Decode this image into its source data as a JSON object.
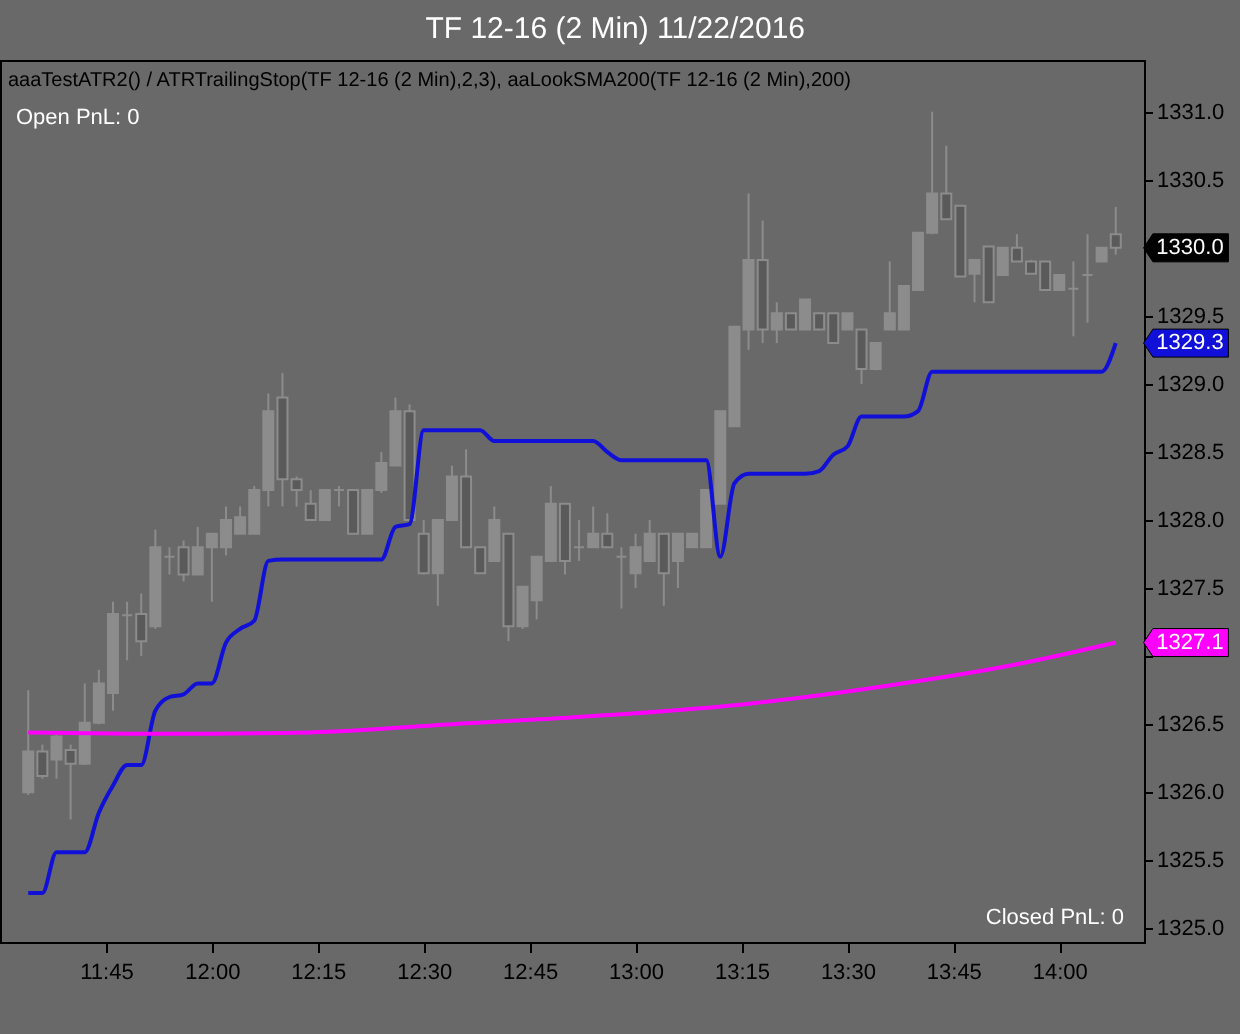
{
  "chart_data": {
    "type": "candlestick",
    "title": "TF 12-16 (2 Min)  11/22/2016",
    "annotations": [
      "aaaTestATR2() / ATRTrailingStop(TF 12-16 (2 Min),2,3), aaLookSMA200(TF 12-16 (2 Min),200)",
      "Open PnL: 0",
      "Closed PnL: 0"
    ],
    "color": "#8c8c8c",
    "x": [
      "2016-11-22T11:34",
      "2016-11-22T11:36",
      "2016-11-22T11:38",
      "2016-11-22T11:40",
      "2016-11-22T11:42",
      "2016-11-22T11:44",
      "2016-11-22T11:46",
      "2016-11-22T11:48",
      "2016-11-22T11:50",
      "2016-11-22T11:52",
      "2016-11-22T11:54",
      "2016-11-22T11:56",
      "2016-11-22T11:58",
      "2016-11-22T12:00",
      "2016-11-22T12:02",
      "2016-11-22T12:04",
      "2016-11-22T12:06",
      "2016-11-22T12:08",
      "2016-11-22T12:10",
      "2016-11-22T12:12",
      "2016-11-22T12:14",
      "2016-11-22T12:16",
      "2016-11-22T12:18",
      "2016-11-22T12:20",
      "2016-11-22T12:22",
      "2016-11-22T12:24",
      "2016-11-22T12:26",
      "2016-11-22T12:28",
      "2016-11-22T12:30",
      "2016-11-22T12:32",
      "2016-11-22T12:34",
      "2016-11-22T12:36",
      "2016-11-22T12:38",
      "2016-11-22T12:40",
      "2016-11-22T12:42",
      "2016-11-22T12:44",
      "2016-11-22T12:46",
      "2016-11-22T12:48",
      "2016-11-22T12:50",
      "2016-11-22T12:52",
      "2016-11-22T12:54",
      "2016-11-22T12:56",
      "2016-11-22T12:58",
      "2016-11-22T13:00",
      "2016-11-22T13:02",
      "2016-11-22T13:04",
      "2016-11-22T13:06",
      "2016-11-22T13:08",
      "2016-11-22T13:10",
      "2016-11-22T13:12",
      "2016-11-22T13:14",
      "2016-11-22T13:16",
      "2016-11-22T13:18",
      "2016-11-22T13:20",
      "2016-11-22T13:22",
      "2016-11-22T13:24",
      "2016-11-22T13:26",
      "2016-11-22T13:28",
      "2016-11-22T13:30",
      "2016-11-22T13:32",
      "2016-11-22T13:34",
      "2016-11-22T13:36",
      "2016-11-22T13:38",
      "2016-11-22T13:40",
      "2016-11-22T13:42",
      "2016-11-22T13:44",
      "2016-11-22T13:46",
      "2016-11-22T13:48",
      "2016-11-22T13:50",
      "2016-11-22T13:52",
      "2016-11-22T13:54",
      "2016-11-22T13:56",
      "2016-11-22T13:58",
      "2016-11-22T14:00",
      "2016-11-22T14:02",
      "2016-11-22T14:04",
      "2016-11-22T14:06",
      "2016-11-22T14:08"
    ],
    "ohlc": [
      [
        1326.0,
        1326.75,
        1325.98,
        1326.3
      ],
      [
        1326.3,
        1326.35,
        1326.1,
        1326.12
      ],
      [
        1326.24,
        1326.45,
        1326.1,
        1326.41
      ],
      [
        1326.31,
        1326.35,
        1325.8,
        1326.21
      ],
      [
        1326.21,
        1326.8,
        1326.2,
        1326.51
      ],
      [
        1326.51,
        1326.9,
        1326.5,
        1326.8
      ],
      [
        1326.73,
        1327.4,
        1326.6,
        1327.31
      ],
      [
        1327.3,
        1327.4,
        1326.97,
        1327.3
      ],
      [
        1327.31,
        1327.46,
        1327.0,
        1327.11
      ],
      [
        1327.22,
        1327.93,
        1327.2,
        1327.8
      ],
      [
        1327.73,
        1327.8,
        1327.6,
        1327.73
      ],
      [
        1327.8,
        1327.85,
        1327.55,
        1327.6
      ],
      [
        1327.6,
        1327.95,
        1327.6,
        1327.8
      ],
      [
        1327.8,
        1327.9,
        1327.4,
        1327.9
      ],
      [
        1327.8,
        1328.1,
        1327.74,
        1328.0
      ],
      [
        1327.9,
        1328.1,
        1327.9,
        1328.02
      ],
      [
        1327.9,
        1328.25,
        1327.9,
        1328.22
      ],
      [
        1328.22,
        1328.93,
        1328.1,
        1328.8
      ],
      [
        1328.9,
        1329.08,
        1328.1,
        1328.3
      ],
      [
        1328.3,
        1328.32,
        1328.1,
        1328.22
      ],
      [
        1328.12,
        1328.22,
        1328.0,
        1328.0
      ],
      [
        1328.0,
        1328.22,
        1328.0,
        1328.22
      ],
      [
        1328.22,
        1328.25,
        1328.1,
        1328.22
      ],
      [
        1328.22,
        1328.22,
        1327.9,
        1327.9
      ],
      [
        1327.9,
        1328.22,
        1327.9,
        1328.22
      ],
      [
        1328.22,
        1328.5,
        1328.2,
        1328.42
      ],
      [
        1328.4,
        1328.9,
        1328.4,
        1328.8
      ],
      [
        1328.8,
        1328.85,
        1328.0,
        1328.0
      ],
      [
        1327.9,
        1328.0,
        1327.6,
        1327.61
      ],
      [
        1327.61,
        1328.0,
        1327.37,
        1328.0
      ],
      [
        1328.0,
        1328.4,
        1328.0,
        1328.32
      ],
      [
        1328.32,
        1328.52,
        1327.8,
        1327.8
      ],
      [
        1327.8,
        1327.8,
        1327.61,
        1327.61
      ],
      [
        1327.7,
        1328.1,
        1327.7,
        1328.0
      ],
      [
        1327.9,
        1327.9,
        1327.11,
        1327.22
      ],
      [
        1327.22,
        1327.51,
        1327.2,
        1327.51
      ],
      [
        1327.41,
        1327.73,
        1327.27,
        1327.73
      ],
      [
        1327.7,
        1328.25,
        1327.7,
        1328.12
      ],
      [
        1328.12,
        1328.12,
        1327.6,
        1327.7
      ],
      [
        1327.8,
        1328.0,
        1327.7,
        1327.8
      ],
      [
        1327.8,
        1328.1,
        1327.8,
        1327.9
      ],
      [
        1327.9,
        1328.05,
        1327.8,
        1327.8
      ],
      [
        1327.73,
        1327.8,
        1327.35,
        1327.73
      ],
      [
        1327.61,
        1327.9,
        1327.5,
        1327.8
      ],
      [
        1327.7,
        1328.0,
        1327.7,
        1327.9
      ],
      [
        1327.9,
        1327.9,
        1327.37,
        1327.61
      ],
      [
        1327.7,
        1327.9,
        1327.5,
        1327.9
      ],
      [
        1327.8,
        1327.9,
        1327.8,
        1327.9
      ],
      [
        1327.8,
        1328.22,
        1327.8,
        1328.22
      ],
      [
        1328.12,
        1328.8,
        1328.12,
        1328.8
      ],
      [
        1328.69,
        1329.42,
        1328.69,
        1329.42
      ],
      [
        1329.4,
        1330.4,
        1329.25,
        1329.91
      ],
      [
        1329.91,
        1330.2,
        1329.3,
        1329.4
      ],
      [
        1329.4,
        1329.6,
        1329.3,
        1329.52
      ],
      [
        1329.52,
        1329.52,
        1329.4,
        1329.4
      ],
      [
        1329.4,
        1329.62,
        1329.4,
        1329.62
      ],
      [
        1329.52,
        1329.52,
        1329.4,
        1329.4
      ],
      [
        1329.52,
        1329.52,
        1329.3,
        1329.3
      ],
      [
        1329.4,
        1329.52,
        1329.4,
        1329.52
      ],
      [
        1329.4,
        1329.4,
        1329.0,
        1329.11
      ],
      [
        1329.11,
        1329.3,
        1329.1,
        1329.3
      ],
      [
        1329.4,
        1329.9,
        1329.4,
        1329.52
      ],
      [
        1329.4,
        1329.72,
        1329.4,
        1329.72
      ],
      [
        1329.69,
        1330.11,
        1329.69,
        1330.11
      ],
      [
        1330.11,
        1331.0,
        1330.1,
        1330.4
      ],
      [
        1330.4,
        1330.75,
        1330.21,
        1330.21
      ],
      [
        1330.31,
        1330.31,
        1329.79,
        1329.79
      ],
      [
        1329.81,
        1329.91,
        1329.6,
        1329.91
      ],
      [
        1330.01,
        1330.01,
        1329.6,
        1329.6
      ],
      [
        1329.8,
        1330.0,
        1329.8,
        1330.0
      ],
      [
        1330.0,
        1330.1,
        1329.9,
        1329.9
      ],
      [
        1329.9,
        1329.91,
        1329.81,
        1329.81
      ],
      [
        1329.9,
        1329.9,
        1329.69,
        1329.69
      ],
      [
        1329.69,
        1329.8,
        1329.69,
        1329.8
      ],
      [
        1329.7,
        1329.9,
        1329.35,
        1329.7
      ],
      [
        1329.8,
        1330.1,
        1329.45,
        1329.8
      ],
      [
        1329.9,
        1330.0,
        1329.9,
        1330.0
      ],
      [
        1330.1,
        1330.3,
        1329.95,
        1330.0
      ]
    ],
    "value_labels": [
      null,
      null,
      null,
      null,
      null,
      null,
      null,
      null,
      null,
      null,
      null,
      null,
      null,
      null,
      null,
      null,
      null,
      null,
      null,
      null,
      null,
      null,
      null,
      null,
      null,
      null,
      null,
      null,
      null,
      null,
      null,
      null,
      null,
      null,
      null,
      null,
      null,
      null,
      null,
      null,
      null,
      null,
      null,
      null,
      null,
      null,
      null,
      null,
      null,
      null,
      null,
      null,
      null,
      null,
      null,
      null,
      null,
      null,
      null,
      null,
      null,
      null,
      null,
      null,
      null,
      null,
      null,
      null,
      null,
      null,
      null,
      null,
      null,
      null,
      null,
      null,
      null,
      "1330.0"
    ],
    "series": [
      {
        "type": "line",
        "color": "#1010d8",
        "values": [
          1325.26,
          1325.26,
          1325.56,
          1325.56,
          1325.56,
          1325.85,
          1326.05,
          1326.2,
          1326.2,
          1326.6,
          1326.7,
          1326.72,
          1326.8,
          1326.8,
          1327.1,
          1327.2,
          1327.26,
          1327.7,
          1327.71,
          1327.71,
          1327.71,
          1327.71,
          1327.71,
          1327.71,
          1327.71,
          1327.71,
          1327.95,
          1327.97,
          1328.66,
          1328.66,
          1328.66,
          1328.66,
          1328.66,
          1328.58,
          1328.58,
          1328.58,
          1328.58,
          1328.58,
          1328.58,
          1328.58,
          1328.58,
          1328.5,
          1328.44,
          1328.44,
          1328.44,
          1328.44,
          1328.44,
          1328.44,
          1328.44,
          1327.73,
          1328.27,
          1328.34,
          1328.34,
          1328.34,
          1328.34,
          1328.34,
          1328.36,
          1328.48,
          1328.54,
          1328.76,
          1328.76,
          1328.76,
          1328.76,
          1328.8,
          1329.09,
          1329.09,
          1329.09,
          1329.09,
          1329.09,
          1329.09,
          1329.09,
          1329.09,
          1329.09,
          1329.09,
          1329.09,
          1329.09,
          1329.09,
          1329.3
        ],
        "value_labels": [
          null,
          null,
          null,
          null,
          null,
          null,
          null,
          null,
          null,
          null,
          null,
          null,
          null,
          null,
          null,
          null,
          null,
          null,
          null,
          null,
          null,
          null,
          null,
          null,
          null,
          null,
          null,
          null,
          null,
          null,
          null,
          null,
          null,
          null,
          null,
          null,
          null,
          null,
          null,
          null,
          null,
          null,
          null,
          null,
          null,
          null,
          null,
          null,
          null,
          null,
          null,
          null,
          null,
          null,
          null,
          null,
          null,
          null,
          null,
          null,
          null,
          null,
          null,
          null,
          null,
          null,
          null,
          null,
          null,
          null,
          null,
          null,
          null,
          null,
          null,
          null,
          null,
          "1329.3"
        ]
      },
      {
        "type": "line",
        "color": "#ff00ff",
        "x": [
          "2016-11-22T11:34",
          "2016-11-22T11:54",
          "2016-11-22T12:14",
          "2016-11-22T12:34",
          "2016-11-22T12:54",
          "2016-11-22T13:14",
          "2016-11-22T13:34",
          "2016-11-22T13:54",
          "2016-11-22T14:08"
        ],
        "values": [
          1326.44,
          1326.43,
          1326.44,
          1326.5,
          1326.56,
          1326.64,
          1326.77,
          1326.94,
          1327.1
        ],
        "value_labels": [
          null,
          null,
          null,
          null,
          null,
          null,
          null,
          null,
          "1327.1"
        ]
      }
    ],
    "xlim": [
      "2016-11-22T11:30",
      "2016-11-22T14:12"
    ],
    "xticks": [
      {
        "value": "2016-11-22T11:45",
        "label": "11:45"
      },
      {
        "value": "2016-11-22T12:00",
        "label": "12:00"
      },
      {
        "value": "2016-11-22T12:15",
        "label": "12:15"
      },
      {
        "value": "2016-11-22T12:30",
        "label": "12:30"
      },
      {
        "value": "2016-11-22T12:45",
        "label": "12:45"
      },
      {
        "value": "2016-11-22T13:00",
        "label": "13:00"
      },
      {
        "value": "2016-11-22T13:15",
        "label": "13:15"
      },
      {
        "value": "2016-11-22T13:30",
        "label": "13:30"
      },
      {
        "value": "2016-11-22T13:45",
        "label": "13:45"
      },
      {
        "value": "2016-11-22T14:00",
        "label": "14:00"
      }
    ],
    "ylim": [
      1324.9,
      1331.38
    ],
    "yticks": [
      {
        "value": 1325,
        "label": "1325.0"
      },
      {
        "value": 1325.5,
        "label": "1325.5"
      },
      {
        "value": 1326,
        "label": "1326.0"
      },
      {
        "value": 1326.5,
        "label": "1326.5"
      },
      {
        "value": 1327,
        "label": null
      },
      {
        "value": 1327.5,
        "label": "1327.5"
      },
      {
        "value": 1328,
        "label": "1328.0"
      },
      {
        "value": 1328.5,
        "label": "1328.5"
      },
      {
        "value": 1329,
        "label": "1329.0"
      },
      {
        "value": 1329.5,
        "label": "1329.5"
      },
      {
        "value": 1330,
        "label": null
      },
      {
        "value": 1330.5,
        "label": "1330.5"
      },
      {
        "value": 1331,
        "label": "1331.0"
      }
    ],
    "grid": false
  }
}
